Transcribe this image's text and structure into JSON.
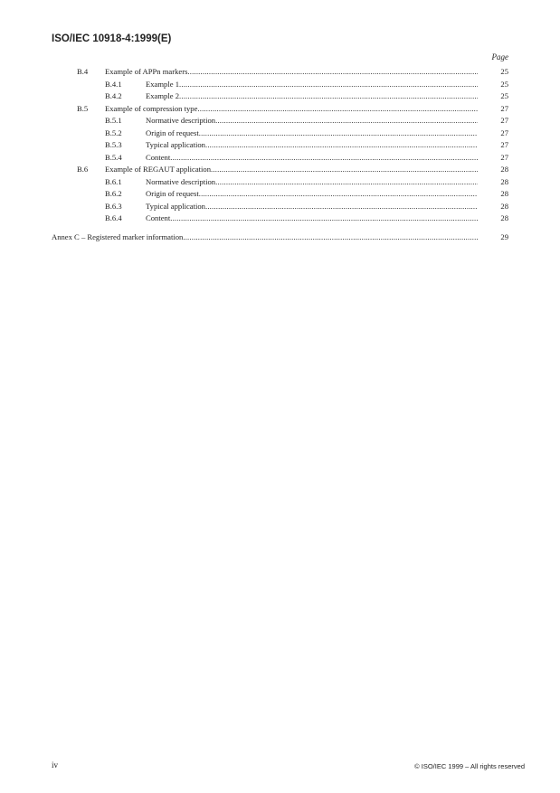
{
  "header": {
    "title": "ISO/IEC 10918-4:1999(E)"
  },
  "page_label": "Page",
  "toc": [
    {
      "level": 1,
      "num": "B.4",
      "title": "Example of APPn markers",
      "page": "25"
    },
    {
      "level": 2,
      "num": "B.4.1",
      "title": "Example 1",
      "page": "25"
    },
    {
      "level": 2,
      "num": "B.4.2",
      "title": "Example 2",
      "page": "25"
    },
    {
      "level": 1,
      "num": "B.5",
      "title": "Example of compression type",
      "page": "27"
    },
    {
      "level": 2,
      "num": "B.5.1",
      "title": "Normative description",
      "page": "27"
    },
    {
      "level": 2,
      "num": "B.5.2",
      "title": "Origin of request",
      "page": "27"
    },
    {
      "level": 2,
      "num": "B.5.3",
      "title": "Typical application",
      "page": "27"
    },
    {
      "level": 2,
      "num": "B.5.4",
      "title": "Content",
      "page": "27"
    },
    {
      "level": 1,
      "num": "B.6",
      "title": "Example of REGAUT application",
      "page": "28"
    },
    {
      "level": 2,
      "num": "B.6.1",
      "title": "Normative description",
      "page": "28"
    },
    {
      "level": 2,
      "num": "B.6.2",
      "title": "Origin of request",
      "page": "28"
    },
    {
      "level": 2,
      "num": "B.6.3",
      "title": "Typical application",
      "page": "28"
    },
    {
      "level": 2,
      "num": "B.6.4",
      "title": "Content",
      "page": "28"
    }
  ],
  "annex": {
    "title": "Annex C – Registered marker information",
    "page": "29"
  },
  "footer": {
    "page_number": "iv",
    "copyright": "© ISO/IEC 1999 – All rights reserved"
  }
}
